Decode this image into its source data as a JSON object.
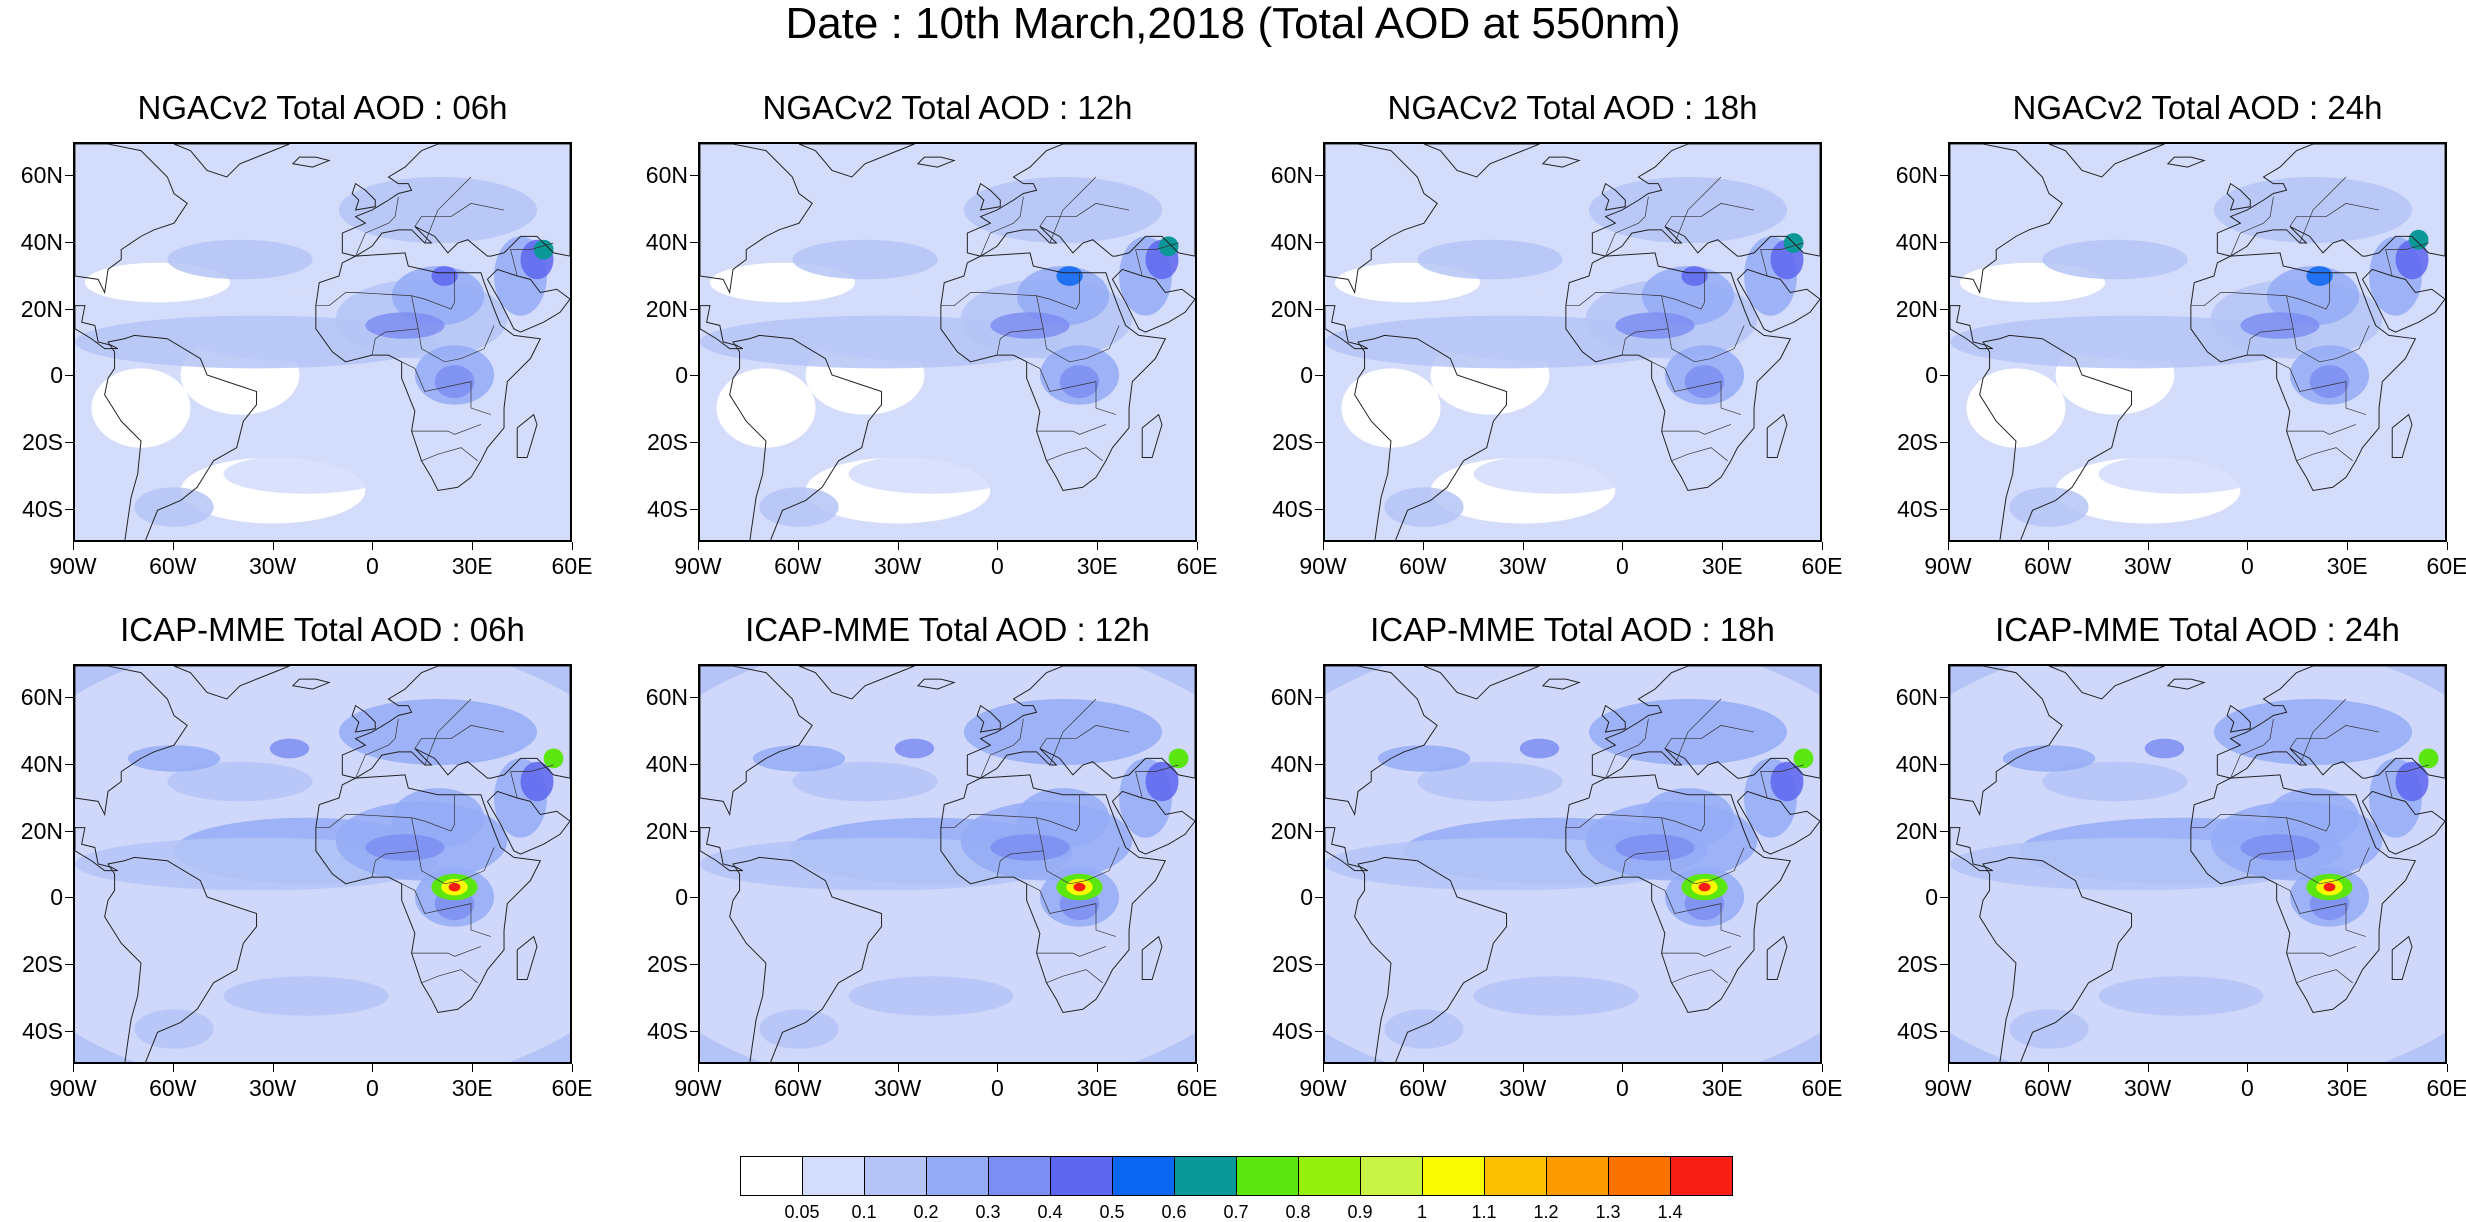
{
  "title": "Date : 10th March,2018 (Total AOD at 550nm)",
  "panels": [
    {
      "model": "NGACv2",
      "title": "NGACv2 Total AOD : 06h"
    },
    {
      "model": "NGACv2",
      "title": "NGACv2 Total AOD : 12h"
    },
    {
      "model": "NGACv2",
      "title": "NGACv2 Total AOD : 18h"
    },
    {
      "model": "NGACv2",
      "title": "NGACv2 Total AOD : 24h"
    },
    {
      "model": "ICAP-MME",
      "title": "ICAP-MME Total AOD : 06h"
    },
    {
      "model": "ICAP-MME",
      "title": "ICAP-MME Total AOD : 12h"
    },
    {
      "model": "ICAP-MME",
      "title": "ICAP-MME Total AOD : 18h"
    },
    {
      "model": "ICAP-MME",
      "title": "ICAP-MME Total AOD : 24h"
    }
  ],
  "lat_ticks": [
    "60N",
    "40N",
    "20N",
    "0",
    "20S",
    "40S"
  ],
  "lat_values": [
    60,
    40,
    20,
    0,
    -20,
    -40
  ],
  "lon_ticks": [
    "90W",
    "60W",
    "30W",
    "0",
    "30E",
    "60E"
  ],
  "lon_values": [
    -90,
    -60,
    -30,
    0,
    30,
    60
  ],
  "extent": {
    "lon": [
      -90,
      60
    ],
    "lat": [
      -50,
      70
    ]
  },
  "colorbar": {
    "levels": [
      "0.05",
      "0.1",
      "0.2",
      "0.3",
      "0.4",
      "0.5",
      "0.6",
      "0.7",
      "0.8",
      "0.9",
      "1",
      "1.1",
      "1.2",
      "1.3",
      "1.4"
    ],
    "colors": [
      "#ffffff",
      "#d4dcfb",
      "#b4c4f6",
      "#94abf6",
      "#7c8ef1",
      "#5d66ee",
      "#0a66f0",
      "#0a9898",
      "#5ae60e",
      "#96f00e",
      "#c8f246",
      "#fbfb00",
      "#fcc000",
      "#fc9a00",
      "#fc7200",
      "#f91e14"
    ]
  }
}
